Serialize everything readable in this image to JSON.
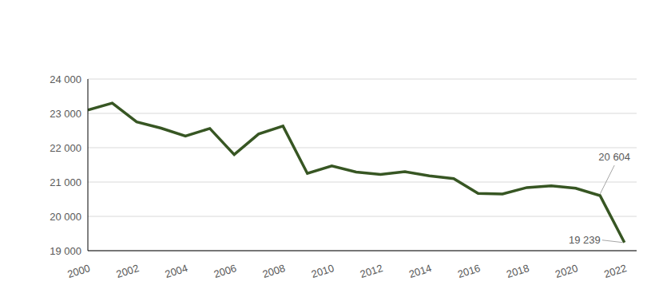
{
  "chart_data": {
    "type": "line",
    "x": [
      2000,
      2001,
      2002,
      2003,
      2004,
      2005,
      2006,
      2007,
      2008,
      2009,
      2010,
      2011,
      2012,
      2013,
      2014,
      2015,
      2016,
      2017,
      2018,
      2019,
      2020,
      2021,
      2022
    ],
    "values": [
      23100,
      23300,
      22750,
      22570,
      22340,
      22560,
      21800,
      22400,
      22630,
      21250,
      21470,
      21290,
      21220,
      21300,
      21180,
      21100,
      20670,
      20650,
      20840,
      20890,
      20820,
      20604,
      19239
    ],
    "color": "#375623",
    "xlim": [
      2000,
      2022.5
    ],
    "xticks": [
      2000,
      2002,
      2004,
      2006,
      2008,
      2010,
      2012,
      2014,
      2016,
      2018,
      2020,
      2022
    ],
    "ylim": [
      19000,
      24000
    ],
    "yticks": [
      {
        "value": 19000,
        "label": "19 000"
      },
      {
        "value": 20000,
        "label": "20 000"
      },
      {
        "value": 21000,
        "label": "21 000"
      },
      {
        "value": 22000,
        "label": "22 000"
      },
      {
        "value": 23000,
        "label": "23 000"
      },
      {
        "value": 24000,
        "label": "24 000"
      }
    ],
    "grid": true,
    "annotations": [
      {
        "x": 2021,
        "y": 20604,
        "text": "20 604"
      },
      {
        "x": 2022,
        "y": 19239,
        "text": "19 239"
      }
    ]
  }
}
